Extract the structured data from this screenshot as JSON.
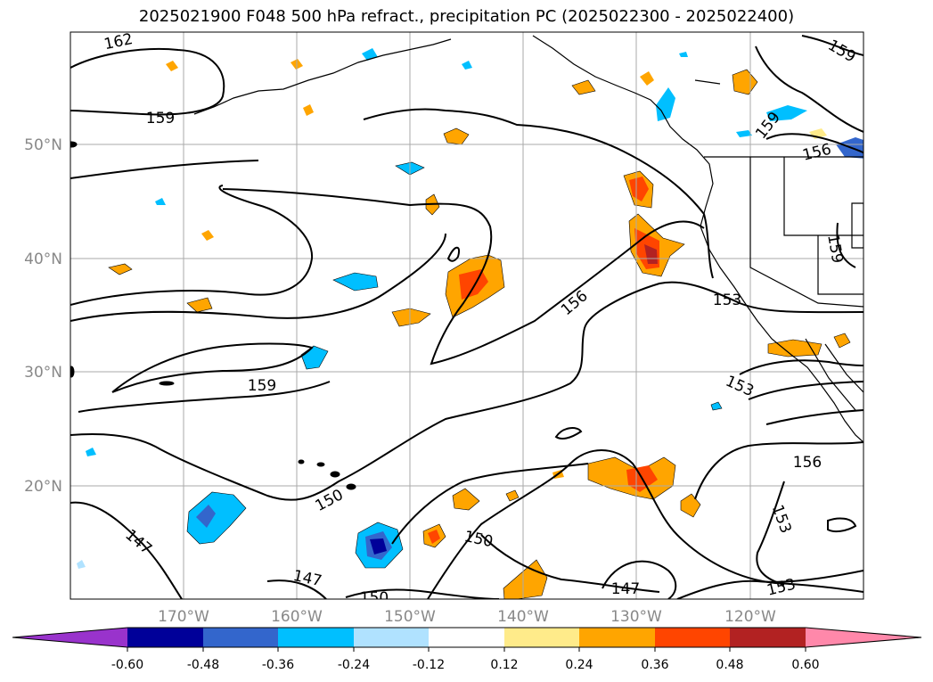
{
  "title": "2025021900 F048 500 hPa refract., precipitation PC (2025022300 - 2025022400)",
  "map": {
    "lat_labels": [
      "50°N",
      "40°N",
      "30°N",
      "20°N"
    ],
    "lon_labels": [
      "170°W",
      "160°W",
      "150°W",
      "140°W",
      "130°W",
      "120°W"
    ],
    "contour_labels": [
      "162",
      "159",
      "159",
      "156",
      "159",
      "156",
      "153",
      "153",
      "159",
      "150",
      "147",
      "147",
      "150",
      "150",
      "147",
      "156",
      "153",
      "153",
      "159"
    ]
  },
  "colorbar": {
    "tick_labels": [
      "-0.60",
      "-0.48",
      "-0.36",
      "-0.24",
      "-0.12",
      "0.12",
      "0.24",
      "0.36",
      "0.48",
      "0.60"
    ],
    "colors": [
      "#9933cc",
      "#000099",
      "#3366cc",
      "#00bfff",
      "#b0e2ff",
      "#ffffff",
      "#ffeb8a",
      "#ffa500",
      "#ff4500",
      "#b22222",
      "#ff88aa"
    ]
  }
}
